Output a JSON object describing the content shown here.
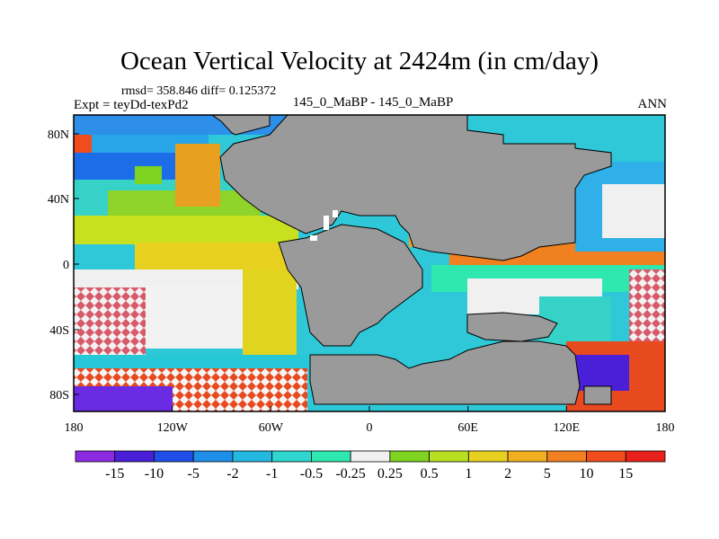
{
  "header": {
    "title": "Ocean Vertical Velocity at 2424m (in cm/day)",
    "stats": "rmsd= 358.846 diff= 0.125372",
    "experiment": "Expt = teyDd-texPd2",
    "comparison": "145_0_MaBP - 145_0_MaBP",
    "season": "ANN"
  },
  "map": {
    "lon_ticks": [
      "180",
      "120W",
      "60W",
      "0",
      "60E",
      "120E",
      "180"
    ],
    "lat_ticks": [
      "80N",
      "40N",
      "0",
      "40S",
      "80S"
    ],
    "land_color": "#9a9a9a",
    "coast_color": "#000000"
  },
  "colorbar": {
    "labels": [
      "-15",
      "-10",
      "-5",
      "-2",
      "-1",
      "-0.5",
      "-0.25",
      "0.25",
      "0.5",
      "1",
      "2",
      "5",
      "10",
      "15"
    ],
    "colors": [
      "#8a2be2",
      "#4a1fd8",
      "#1f4fe8",
      "#1e8fe8",
      "#22b8e0",
      "#2fd6d0",
      "#2ee8b0",
      "#f0f0f0",
      "#7ed321",
      "#b8e020",
      "#e8d020",
      "#f0b020",
      "#f08020",
      "#f04c1c",
      "#e8201c"
    ]
  }
}
